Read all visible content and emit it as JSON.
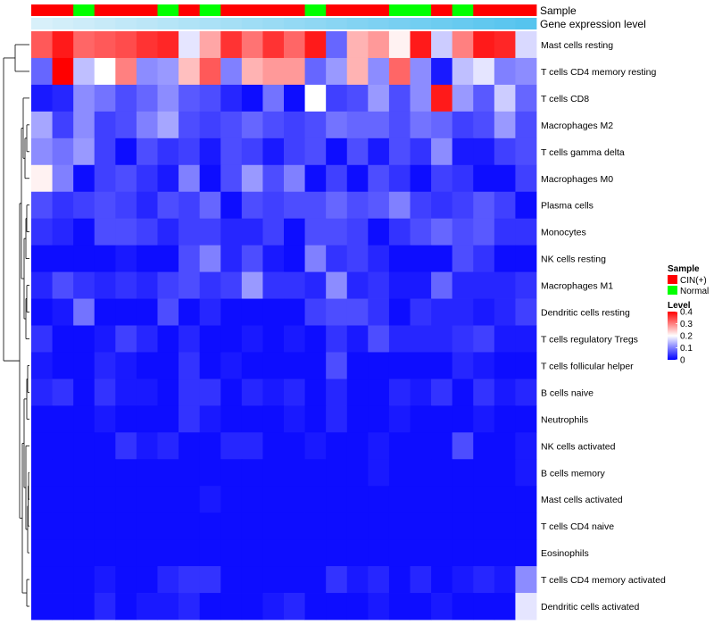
{
  "chart_data": {
    "type": "heatmap",
    "title": "",
    "row_labels": [
      "Mast cells resting",
      "T cells CD4 memory resting",
      "T cells CD8",
      "Macrophages M2",
      "T cells gamma delta",
      "Macrophages M0",
      "Plasma cells",
      "Monocytes",
      "NK cells resting",
      "Macrophages M1",
      "Dendritic cells resting",
      "T cells regulatory  Tregs",
      "T cells follicular helper",
      "B cells naive",
      "Neutrophils",
      "NK cells activated",
      "B cells memory",
      "Mast cells activated",
      "T cells CD4 naive",
      "Eosinophils",
      "T cells CD4 memory activated",
      "Dendritic cells activated"
    ],
    "annotations": [
      {
        "name": "Sample",
        "values": [
          "CIN(+)",
          "CIN(+)",
          "Normal",
          "CIN(+)",
          "CIN(+)",
          "CIN(+)",
          "Normal",
          "CIN(+)",
          "Normal",
          "CIN(+)",
          "CIN(+)",
          "CIN(+)",
          "CIN(+)",
          "Normal",
          "CIN(+)",
          "CIN(+)",
          "CIN(+)",
          "Normal",
          "Normal",
          "CIN(+)",
          "Normal",
          "CIN(+)",
          "CIN(+)",
          "CIN(+)"
        ]
      },
      {
        "name": "Gene expression level",
        "values": [
          0.04,
          0.05,
          0.06,
          0.07,
          0.08,
          0.09,
          0.1,
          0.11,
          0.12,
          0.13,
          0.14,
          0.15,
          0.16,
          0.17,
          0.18,
          0.19,
          0.2,
          0.21,
          0.22,
          0.23,
          0.24,
          0.25,
          0.26,
          0.27
        ]
      }
    ],
    "values": [
      [
        0.33,
        0.38,
        0.32,
        0.33,
        0.34,
        0.36,
        0.37,
        0.18,
        0.27,
        0.36,
        0.31,
        0.36,
        0.32,
        0.38,
        0.08,
        0.26,
        0.28,
        0.21,
        0.38,
        0.16,
        0.3,
        0.38,
        0.37,
        0.17
      ],
      [
        0.08,
        0.4,
        0.15,
        0.2,
        0.3,
        0.11,
        0.12,
        0.25,
        0.33,
        0.1,
        0.26,
        0.28,
        0.28,
        0.08,
        0.12,
        0.26,
        0.11,
        0.32,
        0.11,
        0.02,
        0.15,
        0.18,
        0.1,
        0.11
      ],
      [
        0.02,
        0.03,
        0.11,
        0.09,
        0.06,
        0.08,
        0.11,
        0.07,
        0.06,
        0.03,
        0.01,
        0.09,
        0.01,
        0.2,
        0.05,
        0.06,
        0.12,
        0.06,
        0.11,
        0.38,
        0.12,
        0.07,
        0.16,
        0.08
      ],
      [
        0.13,
        0.05,
        0.11,
        0.05,
        0.06,
        0.1,
        0.13,
        0.06,
        0.05,
        0.06,
        0.08,
        0.06,
        0.05,
        0.06,
        0.09,
        0.08,
        0.08,
        0.06,
        0.09,
        0.08,
        0.05,
        0.06,
        0.12,
        0.06
      ],
      [
        0.11,
        0.09,
        0.12,
        0.05,
        0.01,
        0.06,
        0.04,
        0.05,
        0.02,
        0.06,
        0.05,
        0.02,
        0.05,
        0.06,
        0.01,
        0.06,
        0.02,
        0.06,
        0.04,
        0.11,
        0.02,
        0.02,
        0.05,
        0.06
      ],
      [
        0.21,
        0.1,
        0.01,
        0.05,
        0.06,
        0.04,
        0.02,
        0.1,
        0.01,
        0.06,
        0.12,
        0.06,
        0.1,
        0.01,
        0.05,
        0.01,
        0.06,
        0.04,
        0.01,
        0.05,
        0.04,
        0.01,
        0.01,
        0.05
      ],
      [
        0.06,
        0.04,
        0.05,
        0.06,
        0.05,
        0.03,
        0.06,
        0.05,
        0.08,
        0.01,
        0.06,
        0.05,
        0.06,
        0.06,
        0.08,
        0.06,
        0.07,
        0.1,
        0.05,
        0.04,
        0.05,
        0.07,
        0.05,
        0.01
      ],
      [
        0.04,
        0.03,
        0.01,
        0.06,
        0.06,
        0.05,
        0.03,
        0.05,
        0.05,
        0.03,
        0.03,
        0.05,
        0.01,
        0.06,
        0.06,
        0.05,
        0.01,
        0.04,
        0.06,
        0.08,
        0.06,
        0.07,
        0.04,
        0.04
      ],
      [
        0.01,
        0.01,
        0.01,
        0.01,
        0.02,
        0.01,
        0.01,
        0.06,
        0.1,
        0.03,
        0.06,
        0.02,
        0.01,
        0.1,
        0.04,
        0.05,
        0.03,
        0.01,
        0.01,
        0.01,
        0.06,
        0.04,
        0.01,
        0.01
      ],
      [
        0.03,
        0.06,
        0.04,
        0.03,
        0.04,
        0.03,
        0.05,
        0.06,
        0.04,
        0.05,
        0.12,
        0.04,
        0.04,
        0.03,
        0.11,
        0.03,
        0.04,
        0.02,
        0.02,
        0.08,
        0.03,
        0.03,
        0.03,
        0.04
      ],
      [
        0.01,
        0.02,
        0.09,
        0.01,
        0.01,
        0.01,
        0.06,
        0.01,
        0.03,
        0.01,
        0.01,
        0.01,
        0.01,
        0.05,
        0.06,
        0.06,
        0.04,
        0.01,
        0.04,
        0.03,
        0.03,
        0.02,
        0.03,
        0.05
      ],
      [
        0.04,
        0.01,
        0.01,
        0.02,
        0.05,
        0.03,
        0.01,
        0.03,
        0.01,
        0.01,
        0.02,
        0.01,
        0.02,
        0.01,
        0.04,
        0.02,
        0.06,
        0.03,
        0.03,
        0.03,
        0.04,
        0.05,
        0.02,
        0.02
      ],
      [
        0.02,
        0.01,
        0.01,
        0.03,
        0.02,
        0.01,
        0.01,
        0.04,
        0.01,
        0.02,
        0.01,
        0.01,
        0.01,
        0.01,
        0.06,
        0.01,
        0.01,
        0.01,
        0.01,
        0.01,
        0.03,
        0.02,
        0.01,
        0.01
      ],
      [
        0.03,
        0.04,
        0.01,
        0.04,
        0.02,
        0.02,
        0.01,
        0.04,
        0.04,
        0.01,
        0.03,
        0.02,
        0.03,
        0.01,
        0.03,
        0.01,
        0.01,
        0.03,
        0.02,
        0.04,
        0.01,
        0.04,
        0.02,
        0.03
      ],
      [
        0.01,
        0.01,
        0.01,
        0.02,
        0.01,
        0.01,
        0.01,
        0.04,
        0.02,
        0.01,
        0.01,
        0.01,
        0.02,
        0.01,
        0.03,
        0.01,
        0.01,
        0.02,
        0.01,
        0.01,
        0.01,
        0.02,
        0.01,
        0.01
      ],
      [
        0.01,
        0.01,
        0.01,
        0.01,
        0.04,
        0.02,
        0.03,
        0.01,
        0.01,
        0.03,
        0.03,
        0.01,
        0.01,
        0.02,
        0.01,
        0.01,
        0.02,
        0.01,
        0.01,
        0.01,
        0.06,
        0.01,
        0.01,
        0.02
      ],
      [
        0.01,
        0.01,
        0.01,
        0.01,
        0.01,
        0.01,
        0.01,
        0.01,
        0.01,
        0.01,
        0.01,
        0.01,
        0.01,
        0.01,
        0.01,
        0.01,
        0.02,
        0.01,
        0.01,
        0.01,
        0.01,
        0.01,
        0.01,
        0.02
      ],
      [
        0.01,
        0.01,
        0.01,
        0.01,
        0.01,
        0.01,
        0.01,
        0.01,
        0.02,
        0.01,
        0.01,
        0.01,
        0.01,
        0.01,
        0.01,
        0.01,
        0.01,
        0.01,
        0.01,
        0.01,
        0.01,
        0.01,
        0.01,
        0.01
      ],
      [
        0.01,
        0.01,
        0.01,
        0.01,
        0.01,
        0.01,
        0.01,
        0.01,
        0.01,
        0.01,
        0.01,
        0.01,
        0.01,
        0.01,
        0.01,
        0.01,
        0.01,
        0.01,
        0.01,
        0.01,
        0.01,
        0.01,
        0.01,
        0.01
      ],
      [
        0.01,
        0.01,
        0.01,
        0.01,
        0.01,
        0.01,
        0.01,
        0.01,
        0.01,
        0.01,
        0.01,
        0.01,
        0.01,
        0.01,
        0.01,
        0.01,
        0.01,
        0.01,
        0.01,
        0.01,
        0.01,
        0.01,
        0.01,
        0.01
      ],
      [
        0.01,
        0.01,
        0.01,
        0.02,
        0.01,
        0.01,
        0.03,
        0.04,
        0.04,
        0.01,
        0.01,
        0.01,
        0.01,
        0.01,
        0.04,
        0.02,
        0.03,
        0.01,
        0.03,
        0.01,
        0.02,
        0.03,
        0.02,
        0.11
      ],
      [
        0.01,
        0.01,
        0.01,
        0.03,
        0.01,
        0.02,
        0.02,
        0.03,
        0.01,
        0.01,
        0.01,
        0.02,
        0.03,
        0.01,
        0.01,
        0.01,
        0.02,
        0.01,
        0.01,
        0.02,
        0.01,
        0.01,
        0.01,
        0.18
      ]
    ],
    "legend": {
      "sample_title": "Sample",
      "sample_items": [
        {
          "label": "CIN(+)",
          "color": "#ff0000"
        },
        {
          "label": "Normal",
          "color": "#00ff00"
        }
      ],
      "level_title": "Level",
      "level_ticks": [
        "0.4",
        "0.3",
        "0.2",
        "0.1",
        "0"
      ],
      "range": [
        0,
        0.4
      ],
      "colors": {
        "low": "#0000ff",
        "mid": "#ffffff",
        "high": "#ff0000"
      },
      "position": "right"
    },
    "annotation_colors": {
      "expr_low": "#d8f0fa",
      "expr_high": "#56c4ee"
    },
    "row_dendrogram": true
  }
}
